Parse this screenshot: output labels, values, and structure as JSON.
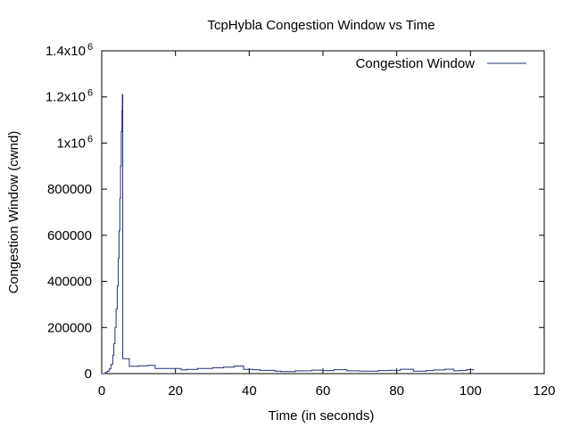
{
  "chart_data": {
    "type": "line",
    "title": "TcpHybla Congestion Window vs Time",
    "xlabel": "Time (in seconds)",
    "ylabel": "Congestion Window (cwnd)",
    "xlim": [
      0,
      120
    ],
    "ylim": [
      0,
      1400000
    ],
    "x_ticks": [
      {
        "value": 0,
        "label": "0"
      },
      {
        "value": 20,
        "label": "20"
      },
      {
        "value": 40,
        "label": "40"
      },
      {
        "value": 60,
        "label": "60"
      },
      {
        "value": 80,
        "label": "80"
      },
      {
        "value": 100,
        "label": "100"
      },
      {
        "value": 120,
        "label": "120"
      }
    ],
    "y_ticks": [
      {
        "value": 0,
        "label": "0",
        "exp": ""
      },
      {
        "value": 200000,
        "label": "200000",
        "exp": ""
      },
      {
        "value": 400000,
        "label": "400000",
        "exp": ""
      },
      {
        "value": 600000,
        "label": "600000",
        "exp": ""
      },
      {
        "value": 800000,
        "label": "800000",
        "exp": ""
      },
      {
        "value": 1000000,
        "label": "1x10",
        "exp": "6"
      },
      {
        "value": 1200000,
        "label": "1.2x10",
        "exp": "6"
      },
      {
        "value": 1400000,
        "label": "1.4x10",
        "exp": "6"
      }
    ],
    "grid": false,
    "legend_position": "top-right",
    "series": [
      {
        "name": "Congestion Window",
        "color": "#1f2f7a",
        "step": true,
        "points": [
          [
            0.0,
            0
          ],
          [
            1.0,
            5000
          ],
          [
            1.5,
            10000
          ],
          [
            2.0,
            20000
          ],
          [
            2.5,
            40000
          ],
          [
            3.0,
            80000
          ],
          [
            3.3,
            130000
          ],
          [
            3.6,
            200000
          ],
          [
            3.9,
            280000
          ],
          [
            4.2,
            380000
          ],
          [
            4.5,
            500000
          ],
          [
            4.7,
            620000
          ],
          [
            4.9,
            760000
          ],
          [
            5.1,
            900000
          ],
          [
            5.3,
            1050000
          ],
          [
            5.5,
            1140000
          ],
          [
            5.6,
            1210000
          ],
          [
            5.7,
            65000
          ],
          [
            7.5,
            32000
          ],
          [
            10.0,
            34000
          ],
          [
            12.5,
            36000
          ],
          [
            14.5,
            22000
          ],
          [
            17.0,
            22000
          ],
          [
            21.5,
            16000
          ],
          [
            23.0,
            18000
          ],
          [
            26.0,
            22000
          ],
          [
            30.0,
            25000
          ],
          [
            33.0,
            28000
          ],
          [
            36.0,
            33000
          ],
          [
            38.5,
            18000
          ],
          [
            41.0,
            17000
          ],
          [
            43.0,
            14000
          ],
          [
            47.0,
            11000
          ],
          [
            48.5,
            9000
          ],
          [
            52.5,
            12000
          ],
          [
            57.0,
            15000
          ],
          [
            60.0,
            13000
          ],
          [
            63.0,
            17000
          ],
          [
            66.5,
            12000
          ],
          [
            70.0,
            11000
          ],
          [
            75.0,
            13000
          ],
          [
            78.0,
            14000
          ],
          [
            81.0,
            19000
          ],
          [
            84.5,
            11000
          ],
          [
            88.0,
            13000
          ],
          [
            90.0,
            16000
          ],
          [
            93.0,
            19000
          ],
          [
            95.5,
            12000
          ],
          [
            97.0,
            14000
          ],
          [
            99.0,
            17000
          ],
          [
            101.0,
            17000
          ]
        ]
      }
    ]
  }
}
